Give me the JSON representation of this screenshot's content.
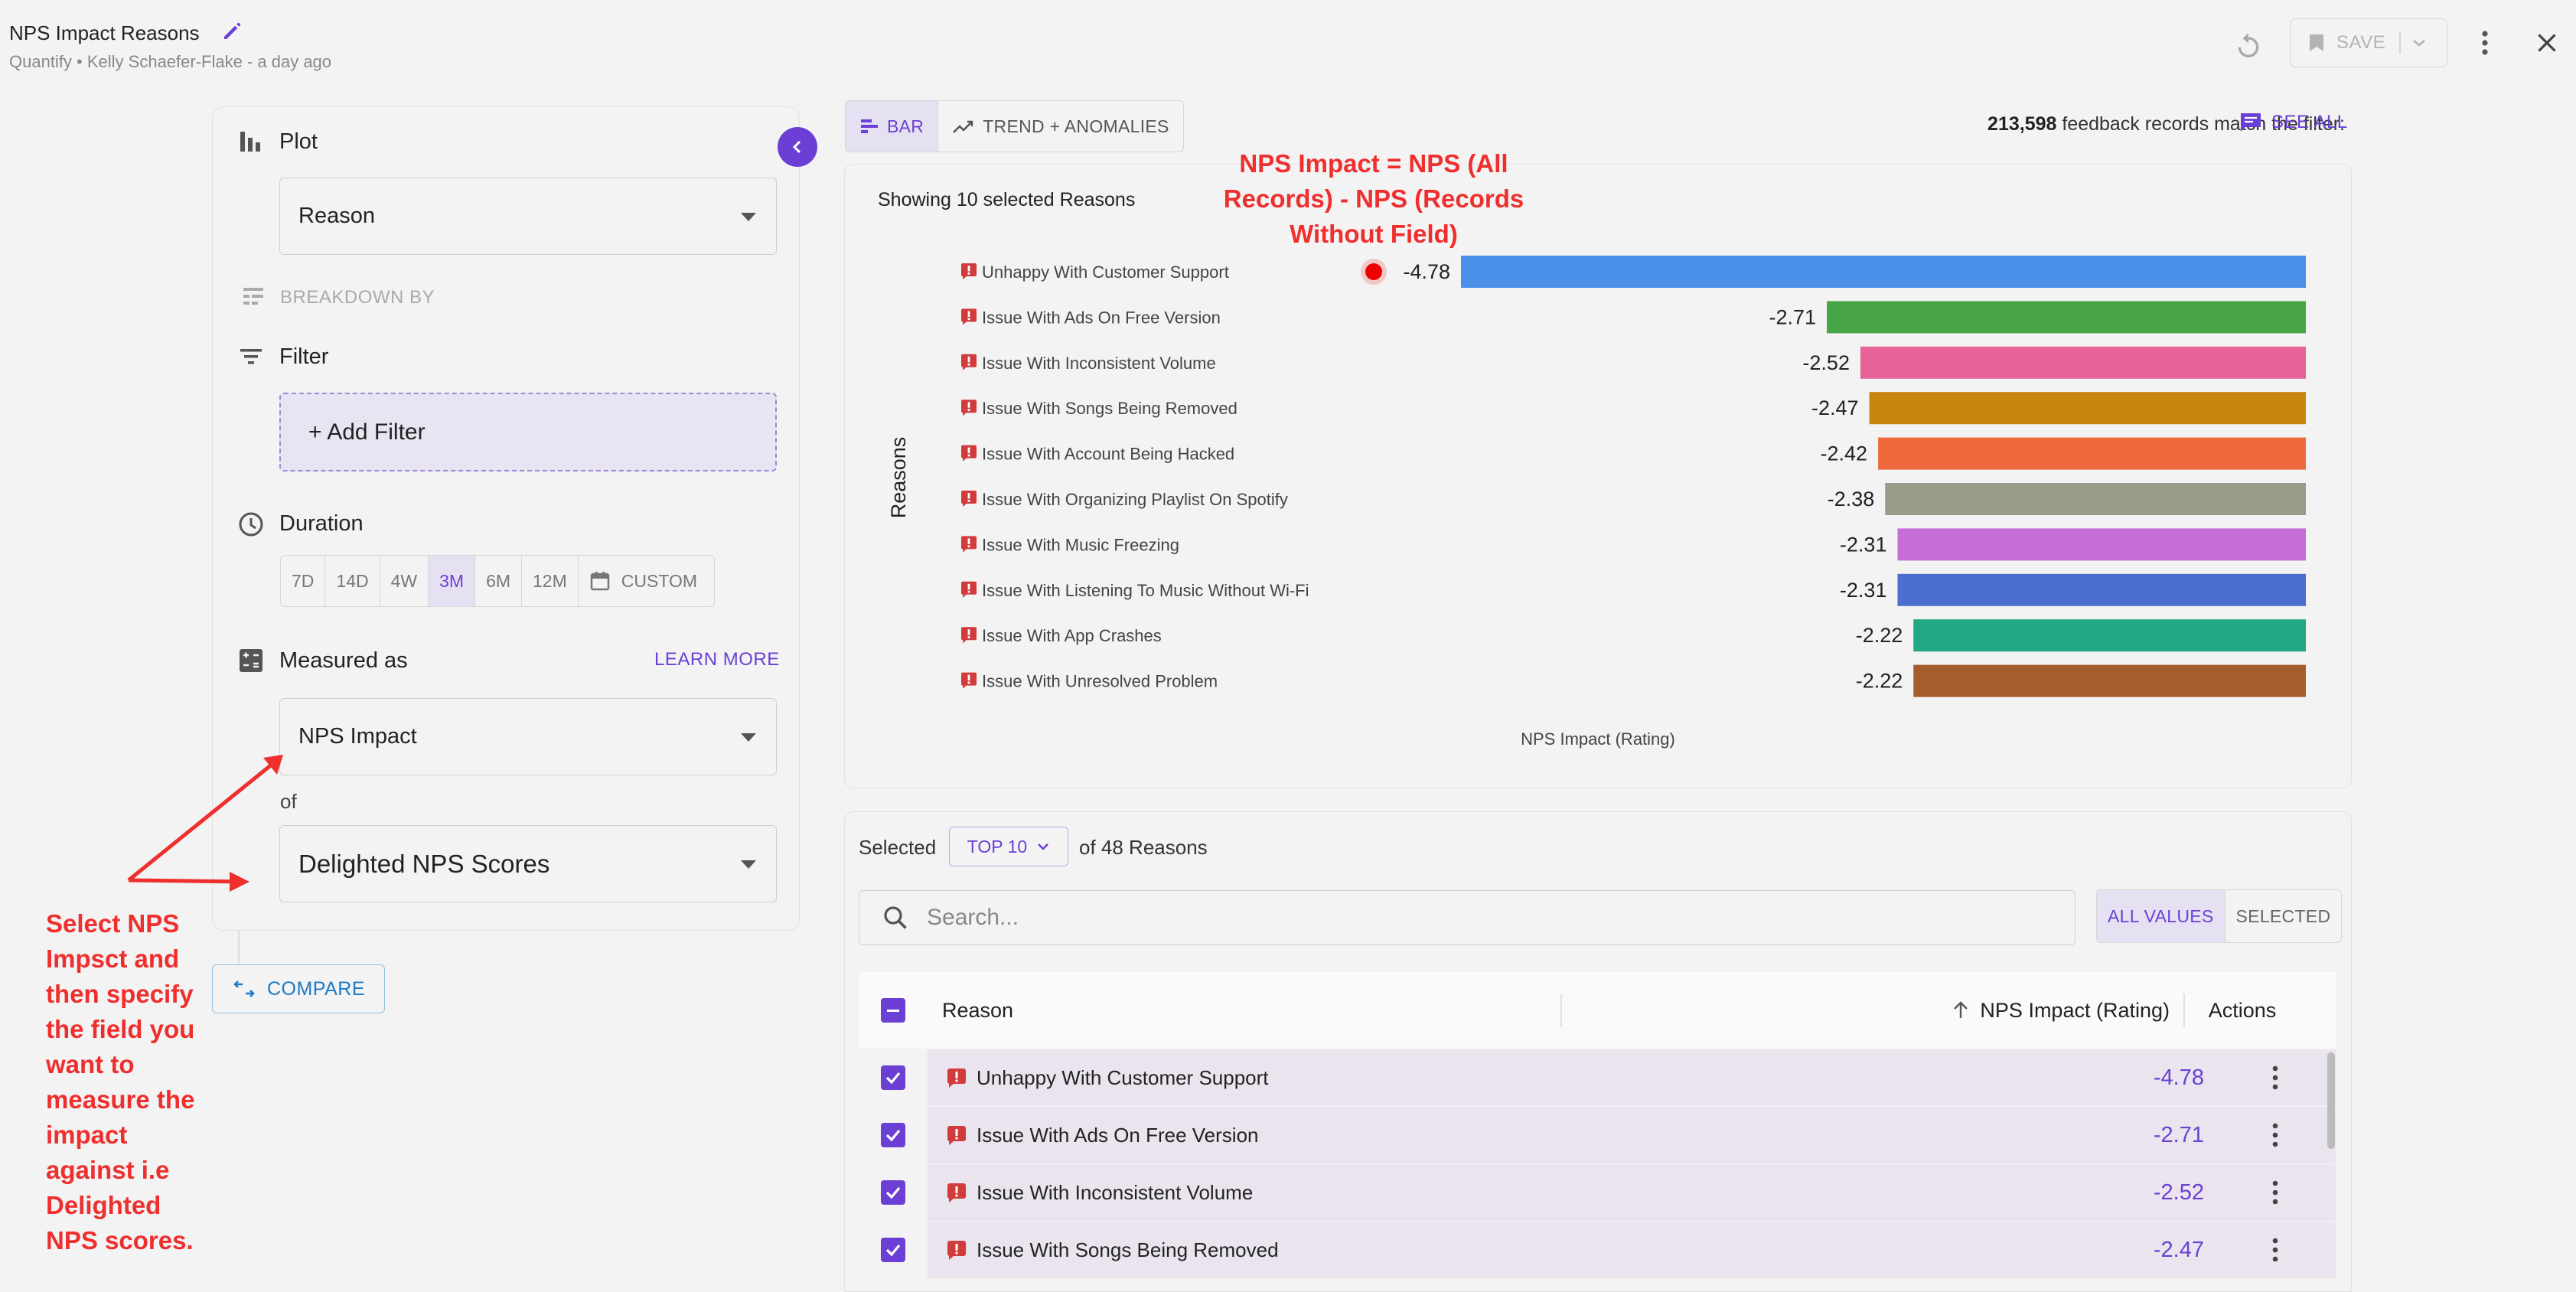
{
  "header": {
    "title": "NPS Impact Reasons",
    "subtitle": "Quantify • Kelly Schaefer-Flake - a day ago",
    "save_label": "SAVE"
  },
  "left_panel": {
    "plot_label": "Plot",
    "plot_value": "Reason",
    "breakdown_label": "BREAKDOWN BY",
    "filter_label": "Filter",
    "add_filter_label": "+ Add Filter",
    "duration_label": "Duration",
    "durations": [
      "7D",
      "14D",
      "4W",
      "3M",
      "6M",
      "12M"
    ],
    "duration_active": "3M",
    "custom_label": "CUSTOM",
    "measured_label": "Measured as",
    "learn_more_label": "LEARN MORE",
    "measure_value": "NPS Impact",
    "of_label": "of",
    "field_value": "Delighted NPS Scores",
    "compare_label": "COMPARE"
  },
  "annotations": {
    "left": "Select NPS\nImpsct and\nthen specify\nthe field you\nwant to\nmeasure the\nimpact\nagainst i.e\nDelighted\nNPS scores.",
    "top": "NPS Impact = NPS (All\nRecords) - NPS (Records\nWithout Field)"
  },
  "view_tabs": {
    "bar_label": "BAR",
    "trend_label": "TREND + ANOMALIES"
  },
  "match": {
    "count": "213,598",
    "text": "feedback records match the filter:",
    "see_all_label": "SEE ALL"
  },
  "chart": {
    "showing_label": "Showing 10 selected Reasons",
    "colors": [
      "#4a90e8",
      "#47a447",
      "#e8629a",
      "#c8860e",
      "#ee6a3c",
      "#9a9a88",
      "#c46ed6",
      "#4b6fcf",
      "#22a882",
      "#a65d2e"
    ]
  },
  "chart_data": {
    "type": "bar",
    "orientation": "horizontal",
    "title": "",
    "ylabel": "Reasons",
    "xlabel": "NPS Impact (Rating)",
    "categories": [
      "Unhappy With Customer Support",
      "Issue With Ads On Free Version",
      "Issue With Inconsistent Volume",
      "Issue With Songs Being Removed",
      "Issue With Account Being Hacked",
      "Issue With Organizing Playlist On Spotify",
      "Issue With Music Freezing",
      "Issue With Listening To Music Without Wi-Fi",
      "Issue With App Crashes",
      "Issue With Unresolved Problem"
    ],
    "values": [
      -4.78,
      -2.71,
      -2.52,
      -2.47,
      -2.42,
      -2.38,
      -2.31,
      -2.31,
      -2.22,
      -2.22
    ],
    "value_labels": [
      "-4.78",
      "-2.71",
      "-2.52",
      "-2.47",
      "-2.42",
      "-2.38",
      "-2.31",
      "-2.31",
      "-2.22",
      "-2.22"
    ],
    "xlim": [
      -4.78,
      0
    ],
    "grid": false,
    "legend": "none"
  },
  "table": {
    "selected_label": "Selected",
    "topn_label": "TOP 10",
    "of_label": "of 48 Reasons",
    "search_placeholder": "Search...",
    "all_values_label": "ALL VALUES",
    "selected_toggle_label": "SELECTED",
    "col_reason": "Reason",
    "col_value": "NPS Impact (Rating)",
    "col_actions": "Actions",
    "rows": [
      {
        "reason": "Unhappy With Customer Support",
        "value": "-4.78"
      },
      {
        "reason": "Issue With Ads On Free Version",
        "value": "-2.71"
      },
      {
        "reason": "Issue With Inconsistent Volume",
        "value": "-2.52"
      },
      {
        "reason": "Issue With Songs Being Removed",
        "value": "-2.47"
      }
    ]
  },
  "icons": {
    "edit": "pencil-icon",
    "undo": "undo-icon",
    "save": "bookmark-icon",
    "more": "kebab-icon",
    "close": "close-icon",
    "plot": "bar-chart-icon",
    "breakdown": "breakdown-icon",
    "filter": "filter-icon",
    "duration": "clock-icon",
    "calendar": "calendar-icon",
    "measured": "calculator-icon",
    "compare": "compare-icon",
    "search": "search-icon",
    "reason": "flag-alert-icon"
  },
  "colors": {
    "accent": "#6b3fd4",
    "annotation": "#ef2e2e",
    "link": "#1d7ac7",
    "reason_flag": "#d23b3b"
  }
}
